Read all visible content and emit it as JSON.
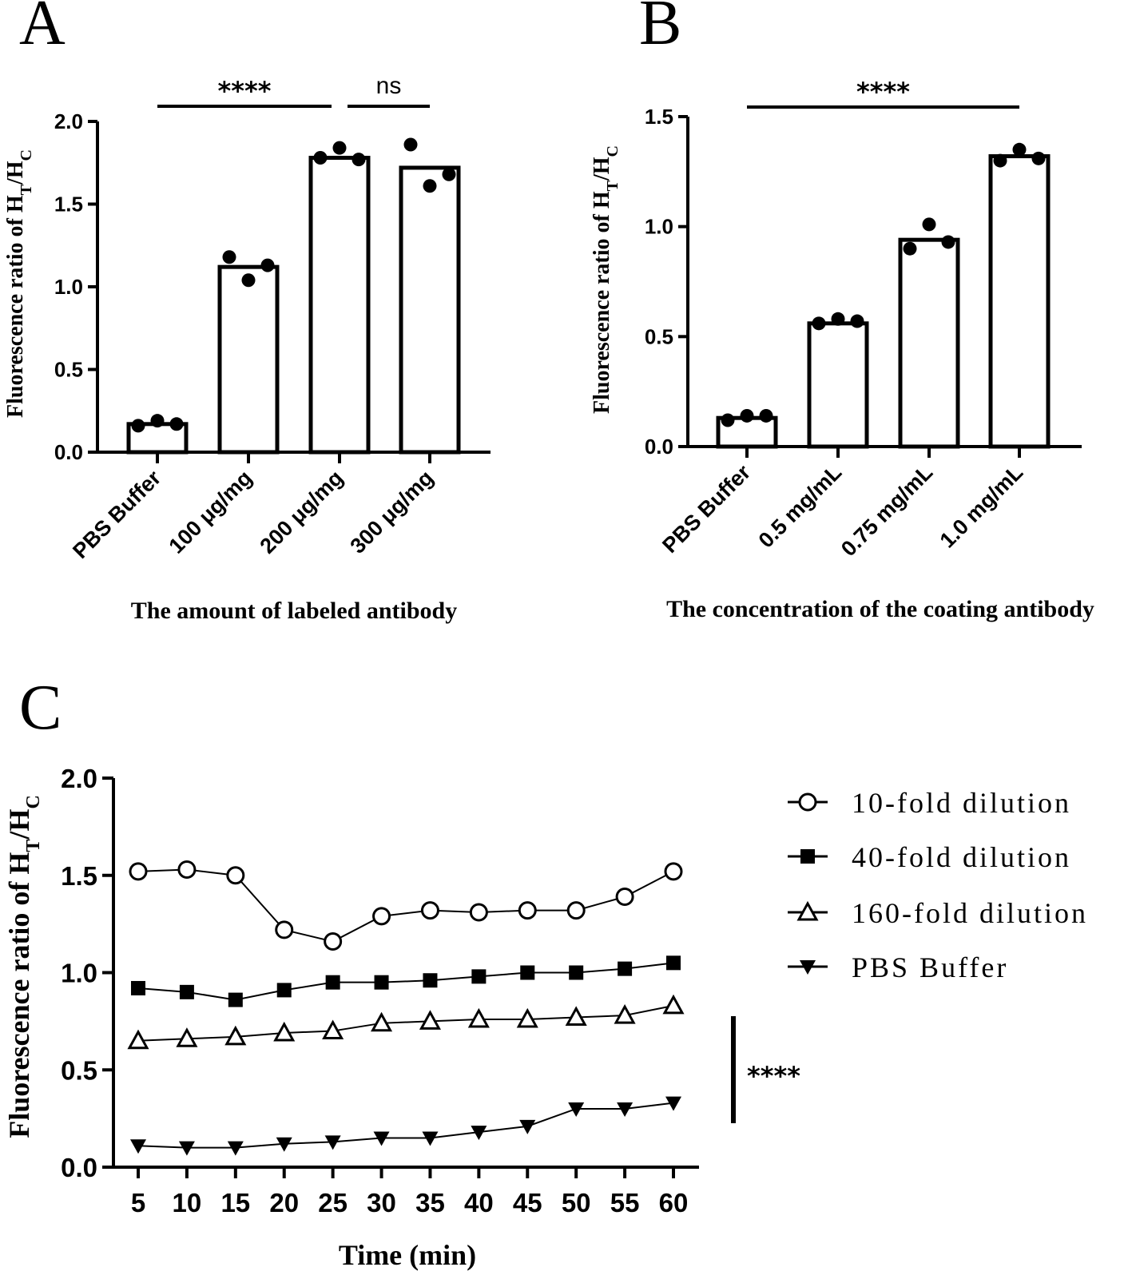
{
  "chart_data": [
    {
      "panel": "A",
      "type": "bar",
      "categories": [
        "PBS Buffer",
        "100 μg/mg",
        "200 μg/mg",
        "300 μg/mg"
      ],
      "values": [
        0.17,
        1.12,
        1.78,
        1.72
      ],
      "points": [
        [
          0.16,
          0.19,
          0.17
        ],
        [
          1.18,
          1.04,
          1.13
        ],
        [
          1.78,
          1.84,
          1.77
        ],
        [
          1.86,
          1.61,
          1.68
        ]
      ],
      "xlabel": "The amount of labeled antibody",
      "ylabel_main": "Fluorescence ratio of H",
      "ylabel_sub1": "T",
      "ylabel_sep": "/H",
      "ylabel_sub2": "C",
      "ylim": [
        0,
        2.0
      ],
      "yticks": [
        "0.0",
        "0.5",
        "1.0",
        "1.5",
        "2.0"
      ],
      "ytick_values": [
        0,
        0.5,
        1.0,
        1.5,
        2.0
      ],
      "significance": [
        {
          "from": 0,
          "to": 2,
          "label": "****"
        },
        {
          "from": 2,
          "to": 3,
          "label": "ns"
        }
      ]
    },
    {
      "panel": "B",
      "type": "bar",
      "categories": [
        "PBS Buffer",
        "0.5 mg/mL",
        "0.75 mg/mL",
        "1.0 mg/mL"
      ],
      "values": [
        0.13,
        0.56,
        0.94,
        1.32
      ],
      "points": [
        [
          0.12,
          0.14,
          0.14
        ],
        [
          0.56,
          0.58,
          0.57
        ],
        [
          0.9,
          1.01,
          0.93
        ],
        [
          1.3,
          1.35,
          1.31
        ]
      ],
      "xlabel": "The concentration of the coating antibody",
      "ylabel_main": "Fluorescence ratio of H",
      "ylabel_sub1": "T",
      "ylabel_sep": "/H",
      "ylabel_sub2": "C",
      "ylim": [
        0,
        1.5
      ],
      "yticks": [
        "0.0",
        "0.5",
        "1.0",
        "1.5"
      ],
      "ytick_values": [
        0,
        0.5,
        1.0,
        1.5
      ],
      "significance": [
        {
          "from": 0,
          "to": 3,
          "label": "****"
        }
      ]
    },
    {
      "panel": "C",
      "type": "line",
      "x": [
        5,
        10,
        15,
        20,
        25,
        30,
        35,
        40,
        45,
        50,
        55,
        60
      ],
      "xticks": [
        "5",
        "10",
        "15",
        "20",
        "25",
        "30",
        "35",
        "40",
        "45",
        "50",
        "55",
        "60"
      ],
      "series": [
        {
          "name": "10-fold dilution",
          "marker": "open-circle",
          "values": [
            1.52,
            1.53,
            1.5,
            1.22,
            1.16,
            1.29,
            1.32,
            1.31,
            1.32,
            1.32,
            1.39,
            1.52
          ]
        },
        {
          "name": "40-fold dilution",
          "marker": "filled-square",
          "values": [
            0.92,
            0.9,
            0.86,
            0.91,
            0.95,
            0.95,
            0.96,
            0.98,
            1.0,
            1.0,
            1.02,
            1.05
          ]
        },
        {
          "name": "160-fold dilution",
          "marker": "open-triangle",
          "values": [
            0.65,
            0.66,
            0.67,
            0.69,
            0.7,
            0.74,
            0.75,
            0.76,
            0.76,
            0.77,
            0.78,
            0.83
          ]
        },
        {
          "name": "PBS Buffer",
          "marker": "filled-down-triangle",
          "values": [
            0.11,
            0.1,
            0.1,
            0.12,
            0.13,
            0.15,
            0.15,
            0.18,
            0.21,
            0.3,
            0.3,
            0.33
          ]
        }
      ],
      "xlabel": "Time (min)",
      "ylabel_main": "Fluorescence ratio of H",
      "ylabel_sub1": "T",
      "ylabel_sep": "/H",
      "ylabel_sub2": "C",
      "xlim": [
        5,
        60
      ],
      "ylim": [
        0,
        2.0
      ],
      "yticks": [
        "0.0",
        "0.5",
        "1.0",
        "1.5",
        "2.0"
      ],
      "ytick_values": [
        0,
        0.5,
        1.0,
        1.5,
        2.0
      ],
      "significance_label": "****",
      "legend_position": "right"
    }
  ],
  "panels": {
    "a_label": "A",
    "b_label": "B",
    "c_label": "C"
  }
}
